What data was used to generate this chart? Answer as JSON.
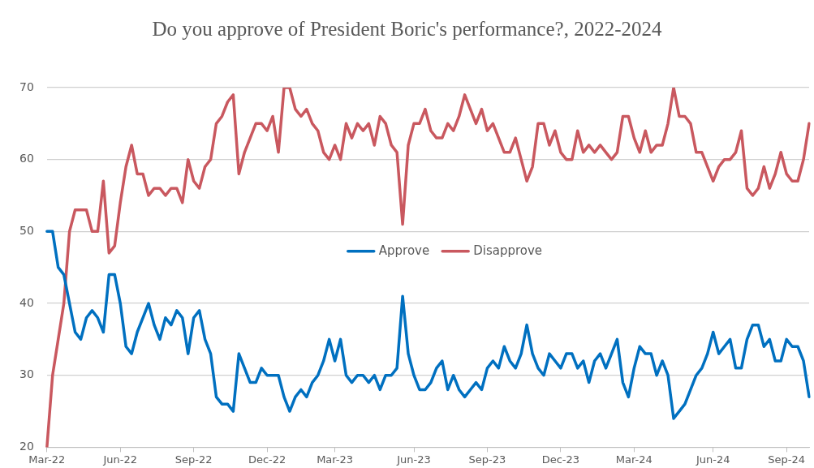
{
  "chart_data": {
    "type": "line",
    "title": "Do you approve of President Boric's performance?, 2022-2024",
    "categories": [
      "Mar-22",
      null,
      null,
      null,
      null,
      null,
      null,
      null,
      null,
      null,
      null,
      null,
      null,
      "Jun-22",
      null,
      null,
      null,
      null,
      null,
      null,
      null,
      null,
      null,
      null,
      null,
      null,
      "Sep-22",
      null,
      null,
      null,
      null,
      null,
      null,
      null,
      null,
      null,
      null,
      null,
      null,
      "Dec-22",
      null,
      null,
      null,
      null,
      null,
      null,
      null,
      null,
      null,
      null,
      null,
      "Mar-23",
      null,
      null,
      null,
      null,
      null,
      null,
      null,
      null,
      null,
      null,
      null,
      null,
      null,
      "Jun-23",
      null,
      null,
      null,
      null,
      null,
      null,
      null,
      null,
      null,
      null,
      null,
      null,
      "Sep-23",
      null,
      null,
      null,
      null,
      null,
      null,
      null,
      null,
      null,
      null,
      null,
      null,
      "Dec-23",
      null,
      null,
      null,
      null,
      null,
      null,
      null,
      null,
      null,
      null,
      null,
      null,
      "Mar-24",
      null,
      null,
      null,
      null,
      null,
      null,
      null,
      null,
      null,
      null,
      null,
      null,
      null,
      "Jun-24",
      null,
      null,
      null,
      null,
      null,
      null,
      null,
      null,
      null,
      null,
      null,
      null,
      "Sep-24",
      null,
      null,
      null,
      null
    ],
    "series": [
      {
        "name": "Approve",
        "color": "#0070c0",
        "values": [
          50,
          50,
          45,
          44,
          40,
          36,
          35,
          38,
          39,
          38,
          36,
          44,
          44,
          40,
          34,
          33,
          36,
          38,
          40,
          37,
          35,
          38,
          37,
          39,
          38,
          33,
          38,
          39,
          35,
          33,
          27,
          26,
          26,
          25,
          33,
          31,
          29,
          29,
          31,
          30,
          30,
          30,
          27,
          25,
          27,
          28,
          27,
          29,
          30,
          32,
          35,
          32,
          35,
          30,
          29,
          30,
          30,
          29,
          30,
          28,
          30,
          30,
          31,
          41,
          33,
          30,
          28,
          28,
          29,
          31,
          32,
          28,
          30,
          28,
          27,
          28,
          29,
          28,
          31,
          32,
          31,
          34,
          32,
          31,
          33,
          37,
          33,
          31,
          30,
          33,
          32,
          31,
          33,
          33,
          31,
          32,
          29,
          32,
          33,
          31,
          33,
          35,
          29,
          27,
          31,
          34,
          33,
          33,
          30,
          32,
          30,
          24,
          25,
          26,
          28,
          30,
          31,
          33,
          36,
          33,
          34,
          35,
          31,
          31,
          35,
          37,
          37,
          34,
          35,
          32,
          32,
          35,
          34,
          34,
          32,
          27
        ]
      },
      {
        "name": "Disapprove",
        "color": "#c9585f",
        "values": [
          20,
          30,
          35,
          40,
          50,
          53,
          53,
          53,
          50,
          50,
          57,
          47,
          48,
          54,
          59,
          62,
          58,
          58,
          55,
          56,
          56,
          55,
          56,
          56,
          54,
          60,
          57,
          56,
          59,
          60,
          65,
          66,
          68,
          69,
          58,
          61,
          63,
          65,
          65,
          64,
          66,
          61,
          70,
          70,
          67,
          66,
          67,
          65,
          64,
          61,
          60,
          62,
          60,
          65,
          63,
          65,
          64,
          65,
          62,
          66,
          65,
          62,
          61,
          51,
          62,
          65,
          65,
          67,
          64,
          63,
          63,
          65,
          64,
          66,
          69,
          67,
          65,
          67,
          64,
          65,
          63,
          61,
          61,
          63,
          60,
          57,
          59,
          65,
          65,
          62,
          64,
          61,
          60,
          60,
          64,
          61,
          62,
          61,
          62,
          61,
          60,
          61,
          66,
          66,
          63,
          61,
          64,
          61,
          62,
          62,
          65,
          70,
          66,
          66,
          65,
          61,
          61,
          59,
          57,
          59,
          60,
          60,
          61,
          64,
          56,
          55,
          56,
          59,
          56,
          58,
          61,
          58,
          57,
          57,
          60,
          65
        ]
      }
    ],
    "ylim": [
      20,
      70
    ],
    "yticks": [
      20,
      30,
      40,
      50,
      60,
      70
    ],
    "grid": "y",
    "legend": "center",
    "marker": "none",
    "line_style": "solid"
  }
}
